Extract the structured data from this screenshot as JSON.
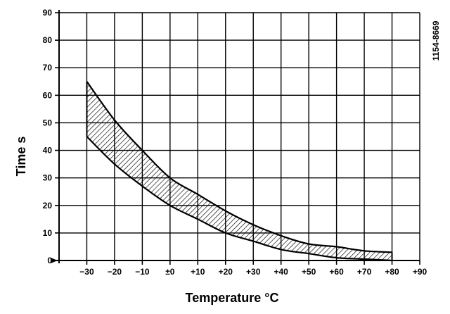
{
  "chart_data": {
    "type": "area",
    "title": "",
    "xlabel": "Temperature °C",
    "ylabel": "Time s",
    "xlim": [
      -40,
      90
    ],
    "ylim": [
      0,
      90
    ],
    "grid": true,
    "x_ticks": [
      -30,
      -20,
      -10,
      0,
      10,
      20,
      30,
      40,
      50,
      60,
      70,
      80,
      90
    ],
    "x_tick_labels": [
      "−30",
      "−20",
      "−10",
      "±0",
      "+10",
      "+20",
      "+30",
      "+40",
      "+50",
      "+60",
      "+70",
      "+80",
      "+90"
    ],
    "y_ticks": [
      0,
      10,
      20,
      30,
      40,
      50,
      60,
      70,
      80,
      90
    ],
    "y_tick_labels": [
      "0",
      "10",
      "20",
      "30",
      "40",
      "50",
      "60",
      "70",
      "80",
      "90"
    ],
    "series": [
      {
        "role": "upper",
        "x": [
          -30,
          -20,
          -10,
          0,
          10,
          20,
          30,
          40,
          50,
          60,
          70,
          80
        ],
        "y": [
          65,
          51,
          40,
          30,
          24,
          18,
          13,
          9,
          6,
          5,
          3.5,
          3
        ]
      },
      {
        "role": "lower",
        "x": [
          -30,
          -20,
          -10,
          0,
          10,
          20,
          30,
          40,
          50,
          60,
          70,
          80
        ],
        "y": [
          45,
          35,
          27,
          20,
          15,
          10,
          7,
          4,
          2.5,
          1,
          0.5,
          0
        ]
      }
    ],
    "fill": "diagonal hatch",
    "reference_number": "1154-8669"
  }
}
